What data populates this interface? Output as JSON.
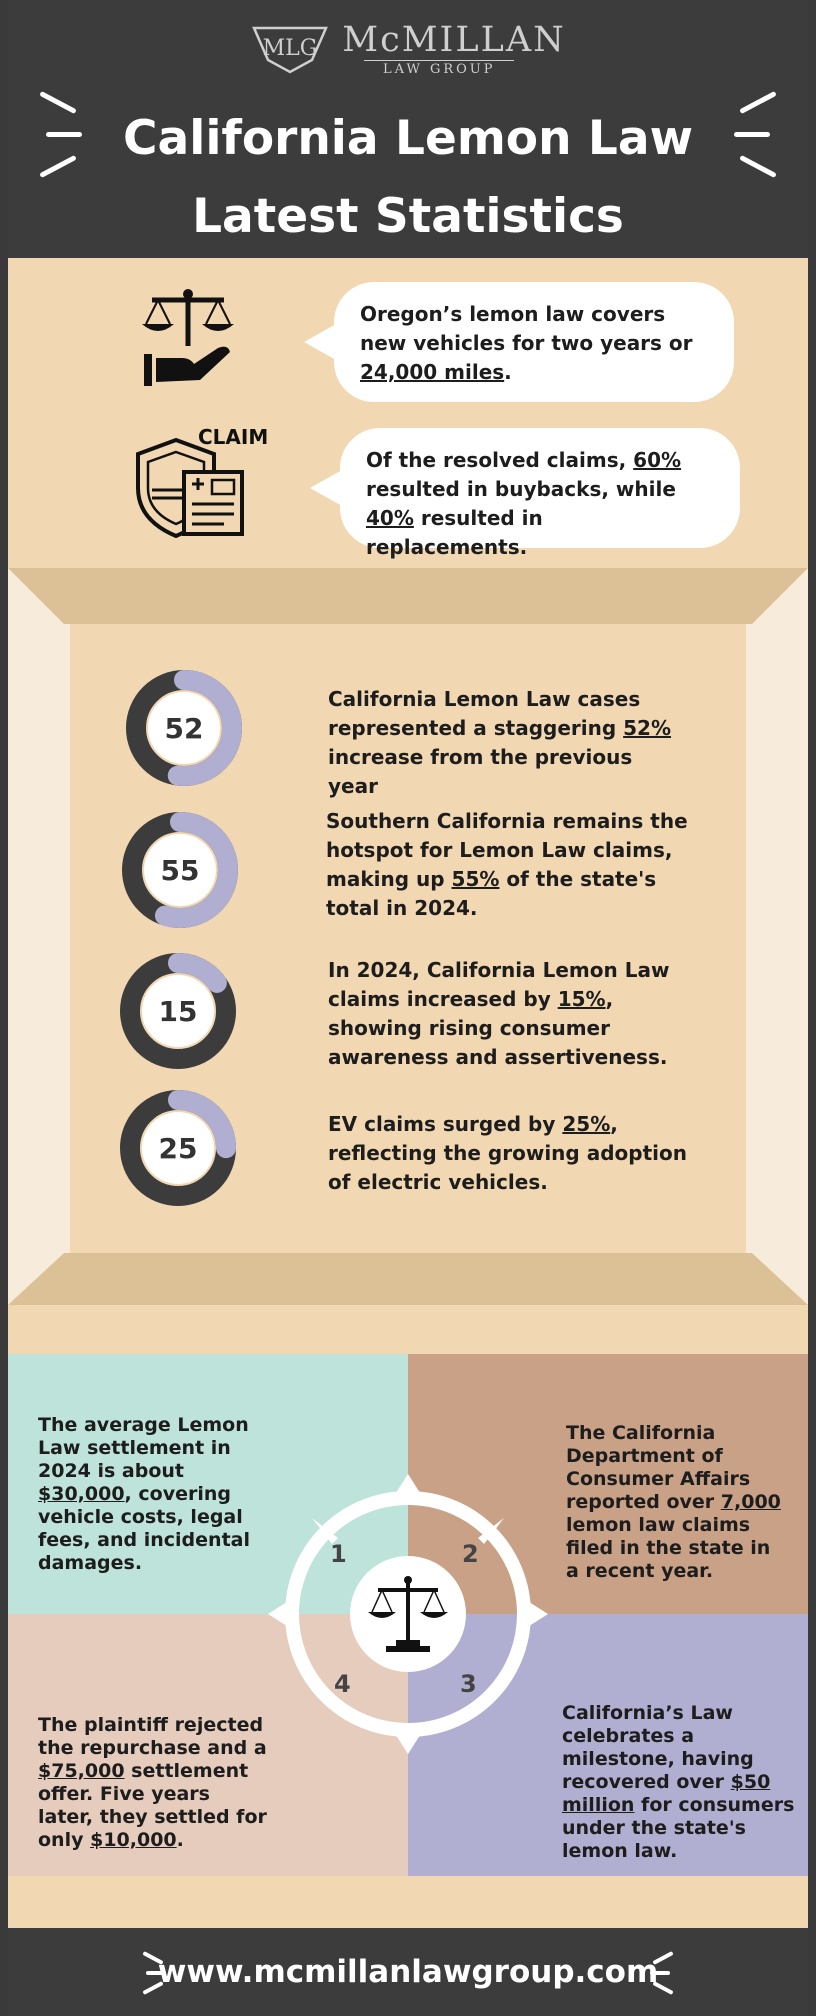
{
  "logo": {
    "monogram": "MLG",
    "name": "McMILLAN",
    "subtitle": "LAW GROUP"
  },
  "title": {
    "line1": "California Lemon Law",
    "line2": "Latest Statistics"
  },
  "facts": [
    {
      "icon": "scale-hand-icon",
      "pre": "Oregon’s lemon law covers new vehicles for two years or ",
      "highlight": "24,000 miles",
      "post": "."
    },
    {
      "icon": "claim-shield-icon",
      "icon_label": "CLAIM",
      "pre": "Of the resolved claims, ",
      "highlight": "60%",
      "mid": " resulted in buybacks, while ",
      "highlight2": "40%",
      "post": " resulted in replacements."
    }
  ],
  "stats": [
    {
      "value": 52,
      "label": "52",
      "pre": "California Lemon Law cases represented a staggering ",
      "highlight": "52%",
      "post": " increase from the previous year"
    },
    {
      "value": 55,
      "label": "55",
      "pre": "Southern California remains the hotspot for Lemon Law claims, making up ",
      "highlight": "55%",
      "post": " of the state's total in 2024."
    },
    {
      "value": 15,
      "label": "15",
      "pre": "In 2024, California Lemon Law claims increased by ",
      "highlight": "15%",
      "post": ", showing rising consumer awareness and assertiveness."
    },
    {
      "value": 25,
      "label": "25",
      "pre": "EV claims surged by ",
      "highlight": "25%",
      "post": ", reflecting the growing adoption of electric vehicles."
    }
  ],
  "quadrants": [
    {
      "number": "1",
      "pre": "The average Lemon Law settlement in 2024 is about ",
      "highlight": "$30,000",
      "post": ", covering vehicle costs, legal fees, and incidental damages."
    },
    {
      "number": "2",
      "pre": "The California Department of Consumer Affairs reported over ",
      "highlight": "7,000",
      "post": " lemon law claims filed in the state in a recent year."
    },
    {
      "number": "3",
      "pre": "California’s Law celebrates a milestone, having recovered over ",
      "highlight": "$50 million",
      "post": " for consumers under the state's lemon law."
    },
    {
      "number": "4",
      "pre": "The plaintiff rejected the repurchase and a ",
      "highlight": "$75,000",
      "mid": " settlement offer. Five years later, they settled for only ",
      "highlight2": "$10,000",
      "post": "."
    }
  ],
  "footer": {
    "url": "www.mcmillanlawgroup.com"
  },
  "colors": {
    "dark": "#3c3c3c",
    "tan": "#f1d7b2",
    "donut_accent": "#b1afd1",
    "mint": "#bde3da",
    "clay": "#c8a187",
    "lavender": "#b1afd1",
    "blush": "#e6ccbd"
  }
}
